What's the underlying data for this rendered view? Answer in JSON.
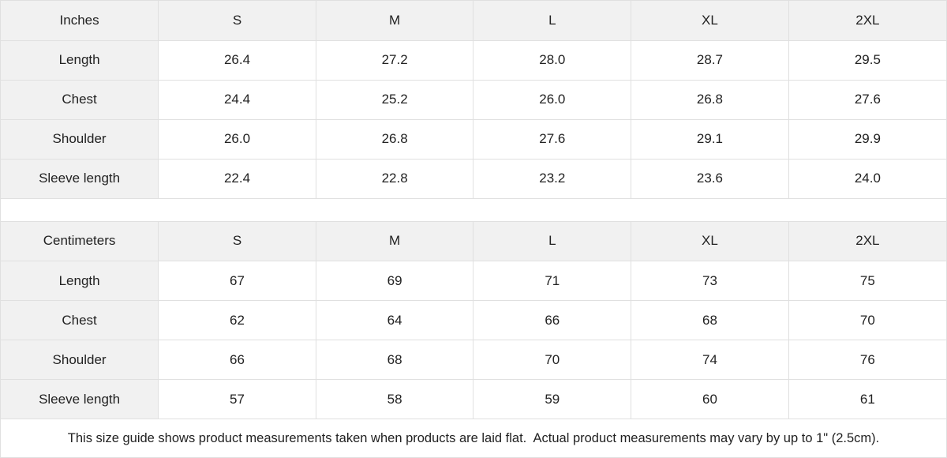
{
  "colors": {
    "header_bg": "#f1f1f1",
    "cell_bg": "#ffffff",
    "border": "#e0e0e0",
    "text": "#222222"
  },
  "tables": [
    {
      "name": "inches",
      "header": [
        "Inches",
        "S",
        "M",
        "L",
        "XL",
        "2XL"
      ],
      "rows": [
        {
          "label": "Length",
          "values": [
            "26.4",
            "27.2",
            "28.0",
            "28.7",
            "29.5"
          ]
        },
        {
          "label": "Chest",
          "values": [
            "24.4",
            "25.2",
            "26.0",
            "26.8",
            "27.6"
          ]
        },
        {
          "label": "Shoulder",
          "values": [
            "26.0",
            "26.8",
            "27.6",
            "29.1",
            "29.9"
          ]
        },
        {
          "label": "Sleeve length",
          "values": [
            "22.4",
            "22.8",
            "23.2",
            "23.6",
            "24.0"
          ]
        }
      ]
    },
    {
      "name": "centimeters",
      "header": [
        "Centimeters",
        "S",
        "M",
        "L",
        "XL",
        "2XL"
      ],
      "rows": [
        {
          "label": "Length",
          "values": [
            "67",
            "69",
            "71",
            "73",
            "75"
          ]
        },
        {
          "label": "Chest",
          "values": [
            "62",
            "64",
            "66",
            "68",
            "70"
          ]
        },
        {
          "label": "Shoulder",
          "values": [
            "66",
            "68",
            "70",
            "74",
            "76"
          ]
        },
        {
          "label": "Sleeve length",
          "values": [
            "57",
            "58",
            "59",
            "60",
            "61"
          ]
        }
      ]
    }
  ],
  "footer": {
    "note": "This size guide shows product measurements taken when products are laid flat.  Actual product measurements may vary by up to 1\" (2.5cm)."
  }
}
